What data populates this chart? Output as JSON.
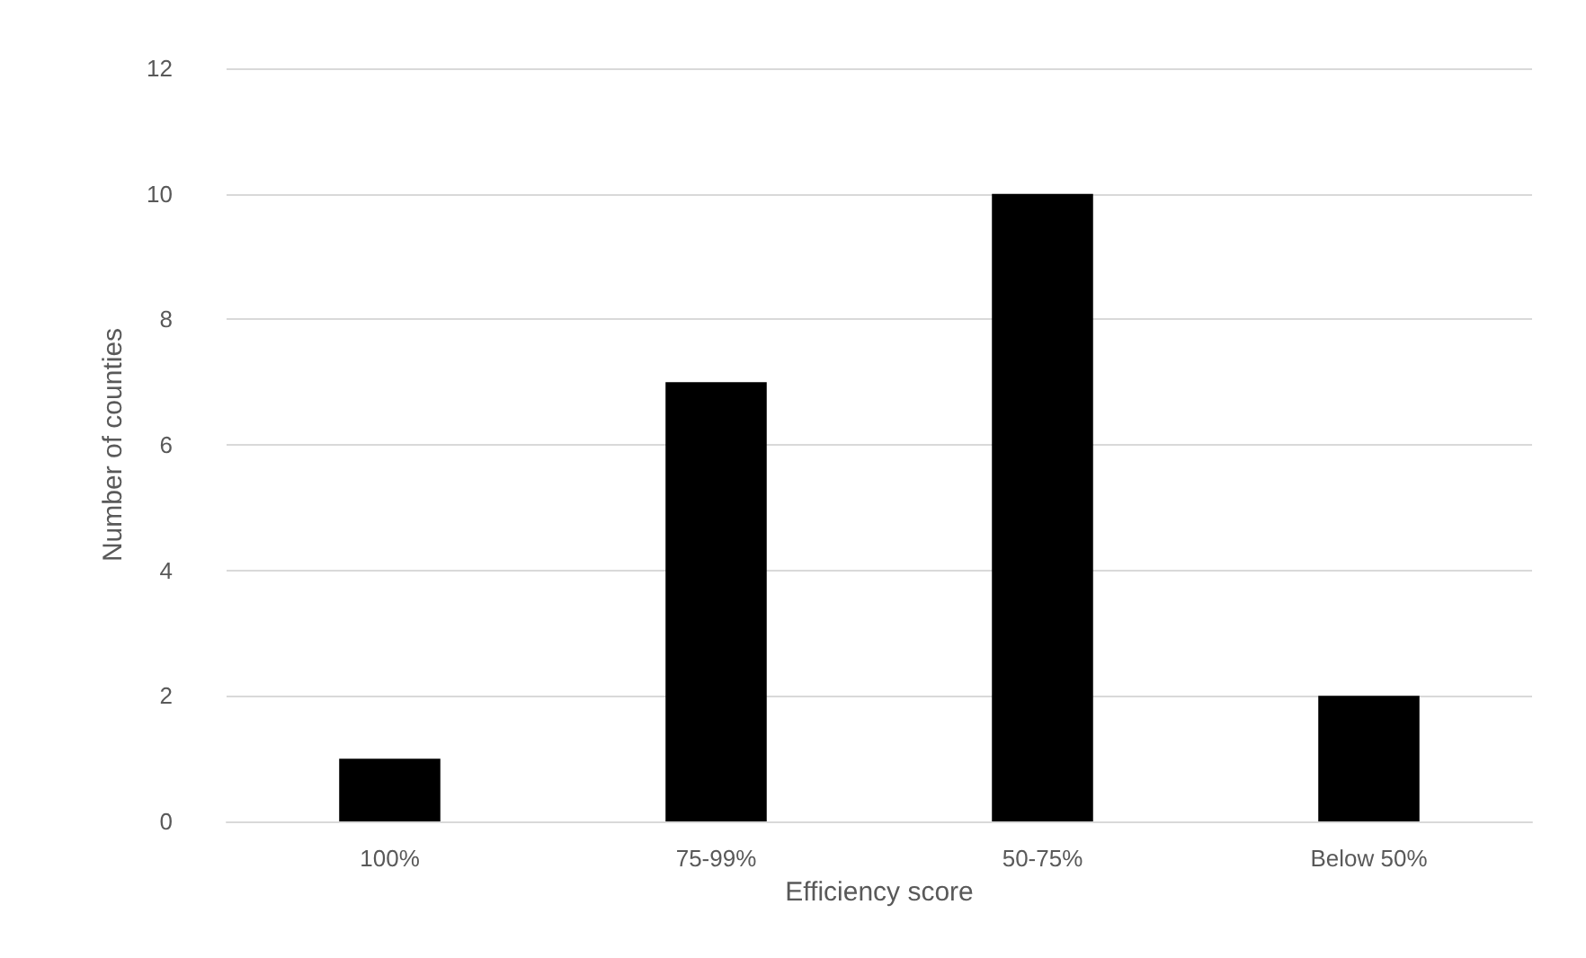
{
  "chart_data": {
    "type": "bar",
    "xlabel": "Efficiency score",
    "ylabel": "Number of counties",
    "categories": [
      "100%",
      "75-99%",
      "50-75%",
      "Below 50%"
    ],
    "values": [
      1,
      7,
      10,
      2
    ],
    "color": "#000000",
    "ylim": [
      0,
      12
    ],
    "yticks": [
      0,
      2,
      4,
      6,
      8,
      10,
      12
    ],
    "grid": "y"
  }
}
